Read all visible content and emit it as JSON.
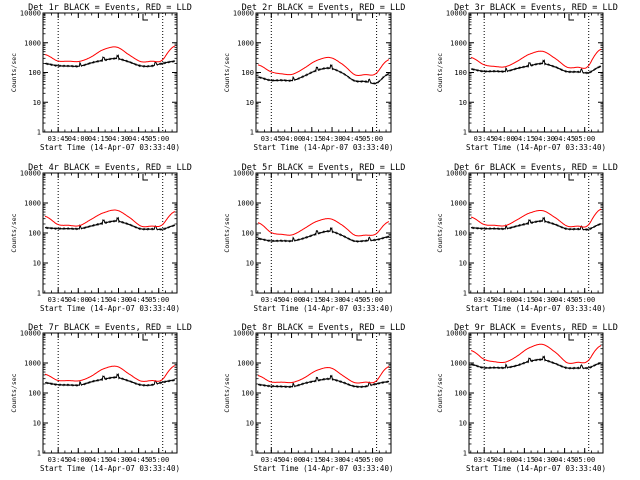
{
  "chart_data": [
    {
      "type": "line",
      "title": "Det 1r BLACK = Events, RED = LLD",
      "xlabel": "Start Time (14-Apr-07 03:33:40)",
      "ylabel": "Counts/sec",
      "yscale": "log",
      "ylim": [
        1,
        10000
      ],
      "xlim": [
        "03:33:40",
        "05:13:40"
      ],
      "x_ticks": [
        "03:45",
        "04:00",
        "04:15",
        "04:30",
        "04:45",
        "05:00"
      ],
      "y_ticks": [
        "1",
        "10",
        "100",
        "1000",
        "10000"
      ],
      "vlines": [
        "03:45",
        "05:03"
      ],
      "series": [
        {
          "color": "#000000",
          "values": [
            200,
            170,
            165,
            165,
            215,
            260,
            295,
            235,
            170,
            165,
            205,
            240
          ],
          "overflow": [
            0.005,
            0.8,
            0.11
          ]
        },
        {
          "color": "#ff0000",
          "values": [
            400,
            250,
            240,
            240,
            350,
            600,
            720,
            420,
            240,
            240,
            280,
            780
          ]
        }
      ]
    },
    {
      "type": "line",
      "title": "Det 2r BLACK = Events, RED = LLD",
      "xlabel": "Start Time (14-Apr-07 03:33:40)",
      "ylabel": "Counts/sec",
      "yscale": "log",
      "ylim": [
        1,
        10000
      ],
      "xlim": [
        "03:33:40",
        "05:13:40"
      ],
      "x_ticks": [
        "03:45",
        "04:00",
        "04:15",
        "04:30",
        "04:45",
        "05:00"
      ],
      "y_ticks": [
        "1",
        "10",
        "100",
        "1000",
        "10000"
      ],
      "vlines": [
        "03:45",
        "05:03"
      ],
      "series": [
        {
          "color": "#000000",
          "values": [
            70,
            55,
            55,
            55,
            80,
            120,
            140,
            100,
            55,
            50,
            45,
            90
          ],
          "overflow": [
            0.005,
            0.8,
            0.11
          ]
        },
        {
          "color": "#ff0000",
          "values": [
            180,
            110,
            90,
            90,
            150,
            260,
            320,
            200,
            90,
            85,
            100,
            270
          ]
        }
      ]
    },
    {
      "type": "line",
      "title": "Det 3r BLACK = Events, RED = LLD",
      "xlabel": "Start Time (14-Apr-07 03:33:40)",
      "ylabel": "Counts/sec",
      "yscale": "log",
      "ylim": [
        1,
        10000
      ],
      "xlim": [
        "03:33:40",
        "05:13:40"
      ],
      "x_ticks": [
        "03:45",
        "04:00",
        "04:15",
        "04:30",
        "04:45",
        "05:00"
      ],
      "y_ticks": [
        "1",
        "10",
        "100",
        "1000",
        "10000"
      ],
      "vlines": [
        "03:45",
        "05:03"
      ],
      "series": [
        {
          "color": "#000000",
          "values": [
            130,
            110,
            110,
            110,
            140,
            170,
            200,
            160,
            110,
            105,
            100,
            160
          ],
          "overflow": [
            0.005,
            0.8,
            0.11
          ]
        },
        {
          "color": "#ff0000",
          "values": [
            320,
            190,
            160,
            160,
            250,
            420,
            520,
            320,
            160,
            150,
            180,
            600
          ]
        }
      ]
    },
    {
      "type": "line",
      "title": "Det 4r BLACK = Events, RED = LLD",
      "xlabel": "Start Time (14-Apr-07 03:33:40)",
      "ylabel": "Counts/sec",
      "yscale": "log",
      "ylim": [
        1,
        10000
      ],
      "xlim": [
        "03:33:40",
        "05:13:40"
      ],
      "x_ticks": [
        "03:45",
        "04:00",
        "04:15",
        "04:30",
        "04:45",
        "05:00"
      ],
      "y_ticks": [
        "1",
        "10",
        "100",
        "1000",
        "10000"
      ],
      "vlines": [
        "03:45",
        "05:03"
      ],
      "series": [
        {
          "color": "#000000",
          "values": [
            150,
            140,
            140,
            140,
            175,
            215,
            250,
            200,
            140,
            135,
            135,
            180
          ],
          "overflow": [
            0.005,
            0.8,
            0.11
          ]
        },
        {
          "color": "#ff0000",
          "values": [
            360,
            200,
            180,
            180,
            300,
            480,
            580,
            360,
            180,
            170,
            200,
            520
          ]
        }
      ]
    },
    {
      "type": "line",
      "title": "Det 5r BLACK = Events, RED = LLD",
      "xlabel": "Start Time (14-Apr-07 03:33:40)",
      "ylabel": "Counts/sec",
      "yscale": "log",
      "ylim": [
        1,
        10000
      ],
      "xlim": [
        "03:33:40",
        "05:13:40"
      ],
      "x_ticks": [
        "03:45",
        "04:00",
        "04:15",
        "04:30",
        "04:45",
        "05:00"
      ],
      "y_ticks": [
        "1",
        "10",
        "100",
        "1000",
        "10000"
      ],
      "vlines": [
        "03:45",
        "05:03"
      ],
      "series": [
        {
          "color": "#000000",
          "values": [
            65,
            55,
            55,
            55,
            70,
            95,
            115,
            85,
            55,
            55,
            60,
            75
          ],
          "overflow": [
            0.005,
            0.8,
            0.11
          ]
        },
        {
          "color": "#ff0000",
          "values": [
            220,
            110,
            90,
            90,
            150,
            250,
            300,
            190,
            90,
            85,
            100,
            240
          ]
        }
      ]
    },
    {
      "type": "line",
      "title": "Det 6r BLACK = Events, RED = LLD",
      "xlabel": "Start Time (14-Apr-07 03:33:40)",
      "ylabel": "Counts/sec",
      "yscale": "log",
      "ylim": [
        1,
        10000
      ],
      "xlim": [
        "03:33:40",
        "05:13:40"
      ],
      "x_ticks": [
        "03:45",
        "04:00",
        "04:15",
        "04:30",
        "04:45",
        "05:00"
      ],
      "y_ticks": [
        "1",
        "10",
        "100",
        "1000",
        "10000"
      ],
      "vlines": [
        "03:45",
        "05:03"
      ],
      "series": [
        {
          "color": "#000000",
          "values": [
            150,
            140,
            140,
            140,
            175,
            215,
            250,
            200,
            140,
            135,
            135,
            200
          ],
          "overflow": [
            0.005,
            0.8,
            0.11
          ]
        },
        {
          "color": "#ff0000",
          "values": [
            340,
            200,
            180,
            180,
            290,
            470,
            560,
            350,
            180,
            170,
            200,
            620
          ]
        }
      ]
    },
    {
      "type": "line",
      "title": "Det 7r BLACK = Events, RED = LLD",
      "xlabel": "Start Time (14-Apr-07 03:33:40)",
      "ylabel": "Counts/sec",
      "yscale": "log",
      "ylim": [
        1,
        10000
      ],
      "xlim": [
        "03:33:40",
        "05:13:40"
      ],
      "x_ticks": [
        "03:45",
        "04:00",
        "04:15",
        "04:30",
        "04:45",
        "05:00"
      ],
      "y_ticks": [
        "1",
        "10",
        "100",
        "1000",
        "10000"
      ],
      "vlines": [
        "03:45",
        "05:03"
      ],
      "series": [
        {
          "color": "#000000",
          "values": [
            220,
            190,
            185,
            185,
            240,
            290,
            330,
            260,
            190,
            185,
            230,
            270
          ],
          "overflow": [
            0.005,
            0.8,
            0.11
          ]
        },
        {
          "color": "#ff0000",
          "values": [
            420,
            270,
            260,
            260,
            380,
            650,
            780,
            460,
            260,
            260,
            300,
            820
          ]
        }
      ]
    },
    {
      "type": "line",
      "title": "Det 8r BLACK = Events, RED = LLD",
      "xlabel": "Start Time (14-Apr-07 03:33:40)",
      "ylabel": "Counts/sec",
      "yscale": "log",
      "ylim": [
        1,
        10000
      ],
      "xlim": [
        "03:33:40",
        "05:13:40"
      ],
      "x_ticks": [
        "03:45",
        "04:00",
        "04:15",
        "04:30",
        "04:45",
        "05:00"
      ],
      "y_ticks": [
        "1",
        "10",
        "100",
        "1000",
        "10000"
      ],
      "vlines": [
        "03:45",
        "05:03"
      ],
      "series": [
        {
          "color": "#000000",
          "values": [
            190,
            170,
            165,
            165,
            215,
            260,
            295,
            235,
            170,
            165,
            205,
            240
          ],
          "overflow": [
            0.005,
            0.8,
            0.11
          ]
        },
        {
          "color": "#ff0000",
          "values": [
            380,
            240,
            230,
            230,
            340,
            580,
            700,
            410,
            230,
            230,
            270,
            760
          ]
        }
      ]
    },
    {
      "type": "line",
      "title": "Det 9r BLACK = Events, RED = LLD",
      "xlabel": "Start Time (14-Apr-07 03:33:40)",
      "ylabel": "Counts/sec",
      "yscale": "log",
      "ylim": [
        1,
        10000
      ],
      "xlim": [
        "03:33:40",
        "05:13:40"
      ],
      "x_ticks": [
        "03:45",
        "04:00",
        "04:15",
        "04:30",
        "04:45",
        "05:00"
      ],
      "y_ticks": [
        "1",
        "10",
        "100",
        "1000",
        "10000"
      ],
      "vlines": [
        "03:45",
        "05:03"
      ],
      "series": [
        {
          "color": "#000000",
          "values": [
            900,
            700,
            700,
            700,
            850,
            1150,
            1300,
            1000,
            700,
            680,
            700,
            1000
          ],
          "overflow": [
            0.005,
            0.8,
            0.11
          ]
        },
        {
          "color": "#ff0000",
          "values": [
            2600,
            1400,
            1100,
            1100,
            1800,
            3300,
            4200,
            2500,
            1100,
            1050,
            1300,
            3800
          ]
        }
      ]
    }
  ]
}
